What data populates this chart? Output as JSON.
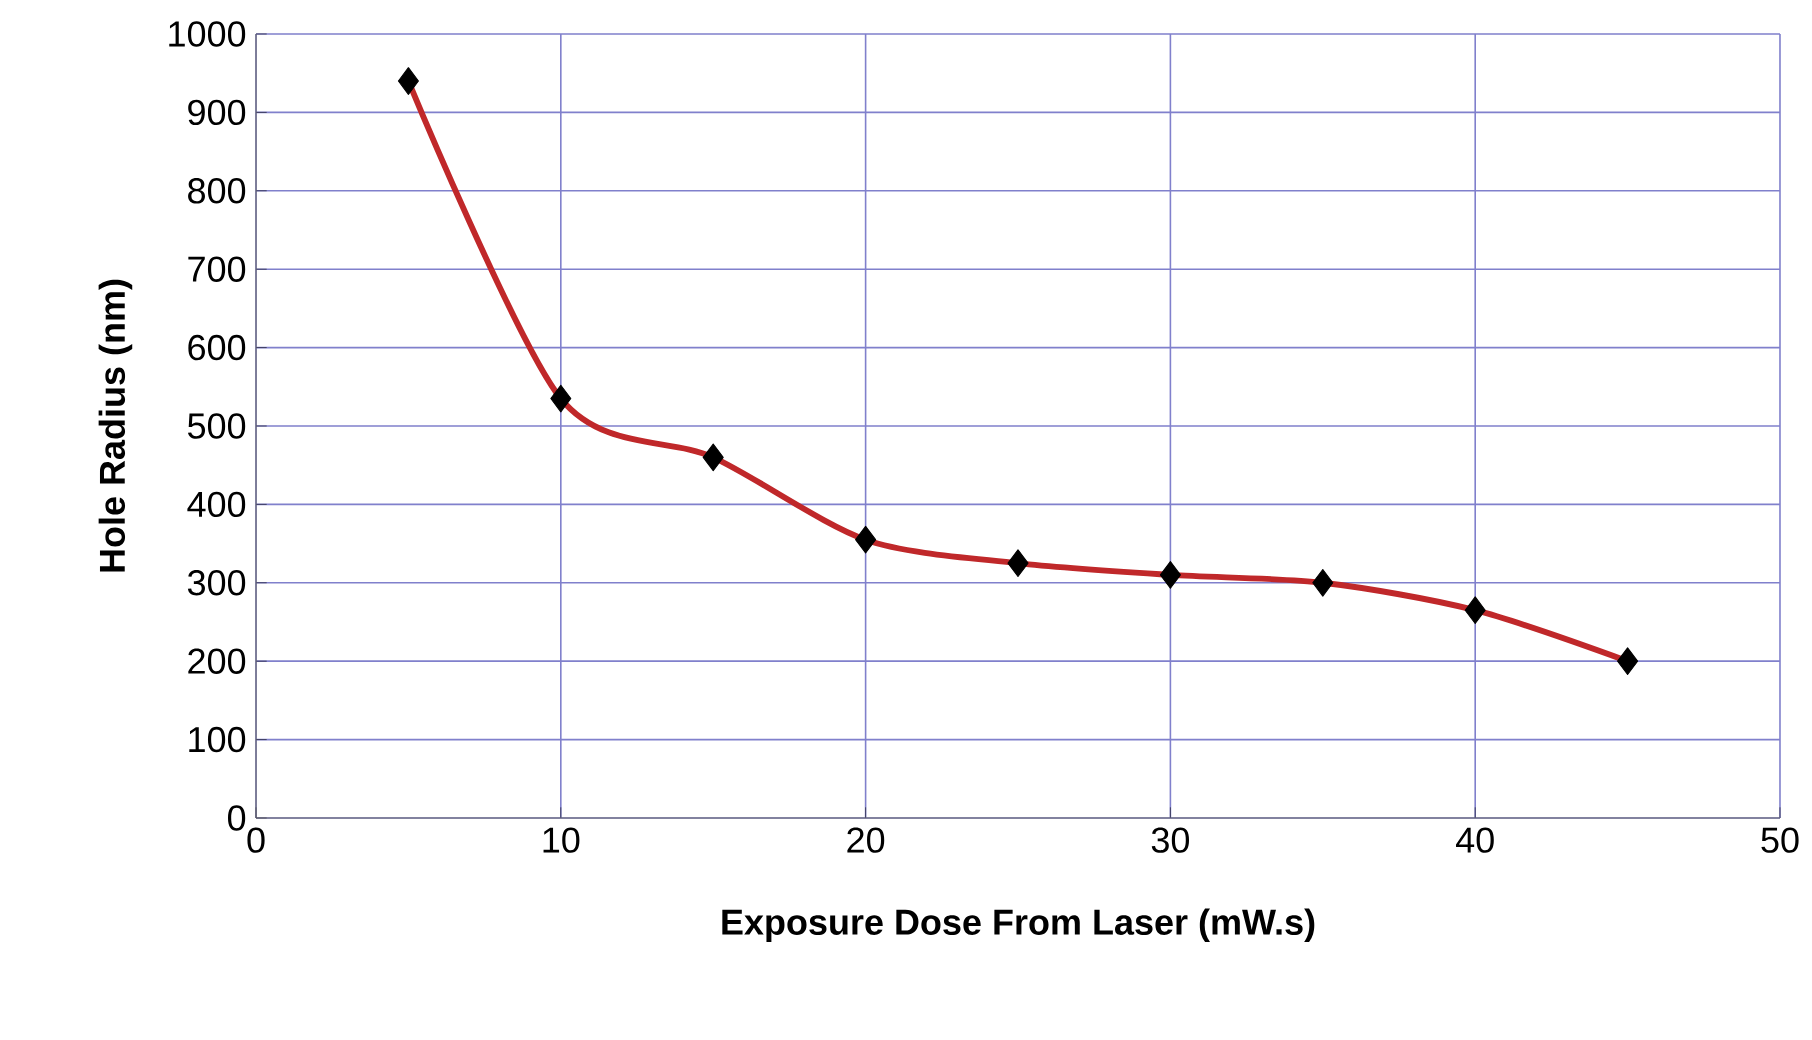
{
  "chart_data": {
    "type": "line",
    "xlabel": "Exposure Dose From Laser (mW.s)",
    "ylabel": "Hole Radius (nm)",
    "x": [
      5,
      10,
      15,
      20,
      25,
      30,
      35,
      40,
      45
    ],
    "series": [
      {
        "color": "#c0282a",
        "values": [
          940,
          535,
          460,
          355,
          325,
          310,
          300,
          265,
          200
        ]
      }
    ],
    "xlim": [
      0,
      50
    ],
    "ylim": [
      0,
      1000
    ],
    "xticks": [
      0,
      10,
      20,
      30,
      40,
      50
    ],
    "yticks": [
      0,
      100,
      200,
      300,
      400,
      500,
      600,
      700,
      800,
      900,
      1000
    ],
    "grid": true,
    "marker": "diamond",
    "line_style": "solid"
  }
}
